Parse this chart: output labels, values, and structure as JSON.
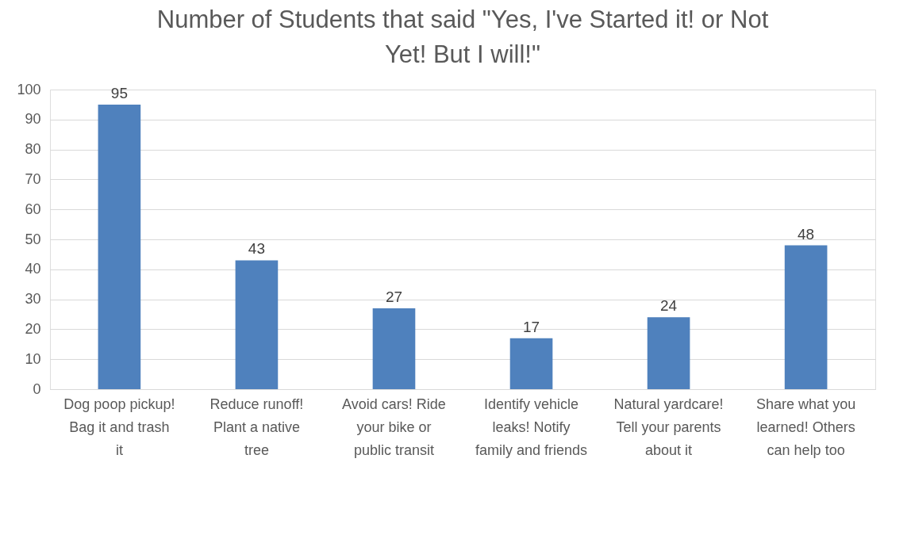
{
  "chart_data": {
    "type": "bar",
    "title": "Number of Students that said \"Yes, I've Started it! or Not Yet! But I will!\"",
    "categories": [
      "Dog poop pickup! Bag it and trash it",
      "Reduce runoff! Plant a native tree",
      "Avoid cars! Ride your bike or public transit",
      "Identify vehicle leaks! Notify family and friends",
      "Natural yardcare! Tell your parents about it",
      "Share what you learned! Others can help too"
    ],
    "values": [
      95,
      43,
      27,
      17,
      24,
      48
    ],
    "color": "#4f81bd",
    "ylim": [
      0,
      100
    ],
    "yticks": [
      0,
      10,
      20,
      30,
      40,
      50,
      60,
      70,
      80,
      90,
      100
    ],
    "grid": "y",
    "data_labels": true
  }
}
